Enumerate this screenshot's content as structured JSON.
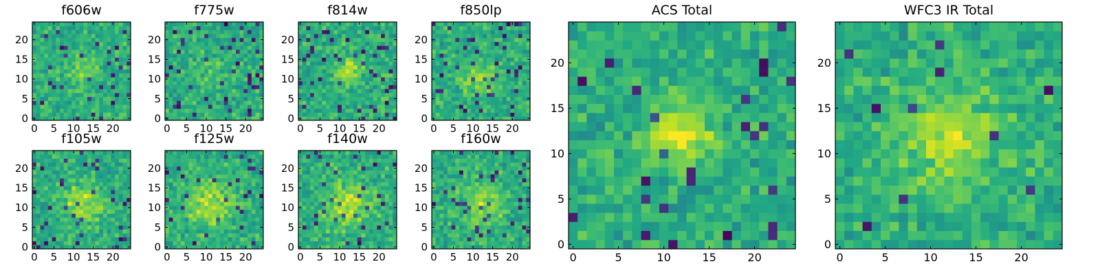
{
  "chart_data": [
    {
      "type": "heatmap",
      "title": "f606w",
      "xticks": [
        "0",
        "5",
        "10",
        "15",
        "20"
      ],
      "yticks": [
        "0",
        "5",
        "10",
        "15",
        "20"
      ],
      "grid_size": 25,
      "xlim": [
        -0.5,
        24.5
      ],
      "ylim": [
        -0.5,
        24.5
      ],
      "colormap": "viridis",
      "values": [],
      "seed": 1,
      "blob": {
        "x": 12,
        "y": 12,
        "strength": 0.15,
        "radius": 3
      },
      "dark_fraction": 0.05
    },
    {
      "type": "heatmap",
      "title": "f775w",
      "xticks": [
        "0",
        "5",
        "10",
        "15",
        "20"
      ],
      "yticks": [
        "0",
        "5",
        "10",
        "15",
        "20"
      ],
      "grid_size": 25,
      "xlim": [
        -0.5,
        24.5
      ],
      "ylim": [
        -0.5,
        24.5
      ],
      "colormap": "viridis",
      "values": [],
      "seed": 2,
      "blob": {
        "x": 12,
        "y": 12,
        "strength": 0.08,
        "radius": 3
      },
      "dark_fraction": 0.07
    },
    {
      "type": "heatmap",
      "title": "f814w",
      "xticks": [
        "0",
        "5",
        "10",
        "15",
        "20"
      ],
      "yticks": [
        "0",
        "5",
        "10",
        "15",
        "20"
      ],
      "grid_size": 25,
      "xlim": [
        -0.5,
        24.5
      ],
      "ylim": [
        -0.5,
        24.5
      ],
      "colormap": "viridis",
      "values": [],
      "seed": 3,
      "blob": {
        "x": 12,
        "y": 12,
        "strength": 0.22,
        "radius": 2.5
      },
      "dark_fraction": 0.06
    },
    {
      "type": "heatmap",
      "title": "f850lp",
      "xticks": [
        "0",
        "5",
        "10",
        "15",
        "20"
      ],
      "yticks": [
        "0",
        "5",
        "10",
        "15",
        "20"
      ],
      "grid_size": 25,
      "xlim": [
        -0.5,
        24.5
      ],
      "ylim": [
        -0.5,
        24.5
      ],
      "colormap": "viridis",
      "values": [],
      "seed": 4,
      "blob": {
        "x": 12,
        "y": 10,
        "strength": 0.2,
        "radius": 3
      },
      "dark_fraction": 0.06
    },
    {
      "type": "heatmap",
      "title": "f105w",
      "xticks": [
        "0",
        "5",
        "10",
        "15",
        "20"
      ],
      "yticks": [
        "0",
        "5",
        "10",
        "15",
        "20"
      ],
      "grid_size": 25,
      "xlim": [
        -0.5,
        24.5
      ],
      "ylim": [
        -0.5,
        24.5
      ],
      "colormap": "viridis",
      "values": [],
      "seed": 5,
      "blob": {
        "x": 12,
        "y": 11,
        "strength": 0.25,
        "radius": 3.5
      },
      "dark_fraction": 0.04
    },
    {
      "type": "heatmap",
      "title": "f125w",
      "xticks": [
        "0",
        "5",
        "10",
        "15",
        "20"
      ],
      "yticks": [
        "0",
        "5",
        "10",
        "15",
        "20"
      ],
      "grid_size": 25,
      "xlim": [
        -0.5,
        24.5
      ],
      "ylim": [
        -0.5,
        24.5
      ],
      "colormap": "viridis",
      "values": [],
      "seed": 6,
      "blob": {
        "x": 11,
        "y": 11,
        "strength": 0.25,
        "radius": 4
      },
      "dark_fraction": 0.04
    },
    {
      "type": "heatmap",
      "title": "f140w",
      "xticks": [
        "0",
        "5",
        "10",
        "15",
        "20"
      ],
      "yticks": [
        "0",
        "5",
        "10",
        "15",
        "20"
      ],
      "grid_size": 25,
      "xlim": [
        -0.5,
        24.5
      ],
      "ylim": [
        -0.5,
        24.5
      ],
      "colormap": "viridis",
      "values": [],
      "seed": 7,
      "blob": {
        "x": 12,
        "y": 11,
        "strength": 0.25,
        "radius": 4
      },
      "dark_fraction": 0.05
    },
    {
      "type": "heatmap",
      "title": "f160w",
      "xticks": [
        "0",
        "5",
        "10",
        "15",
        "20"
      ],
      "yticks": [
        "0",
        "5",
        "10",
        "15",
        "20"
      ],
      "grid_size": 25,
      "xlim": [
        -0.5,
        24.5
      ],
      "ylim": [
        -0.5,
        24.5
      ],
      "colormap": "viridis",
      "values": [],
      "seed": 8,
      "blob": {
        "x": 12,
        "y": 11,
        "strength": 0.25,
        "radius": 3.5
      },
      "dark_fraction": 0.07
    },
    {
      "type": "heatmap",
      "title": "ACS Total",
      "xticks": [
        "0",
        "5",
        "10",
        "15",
        "20"
      ],
      "yticks": [
        "0",
        "5",
        "10",
        "15",
        "20"
      ],
      "grid_size": 25,
      "xlim": [
        -0.5,
        24.5
      ],
      "ylim": [
        -0.5,
        24.5
      ],
      "colormap": "viridis",
      "values": [],
      "seed": 9,
      "blob": {
        "x": 12,
        "y": 12,
        "strength": 0.3,
        "radius": 2.5
      },
      "dark_fraction": 0.03
    },
    {
      "type": "heatmap",
      "title": "WFC3 IR Total",
      "xticks": [
        "0",
        "5",
        "10",
        "15",
        "20"
      ],
      "yticks": [
        "0",
        "5",
        "10",
        "15",
        "20"
      ],
      "grid_size": 25,
      "xlim": [
        -0.5,
        24.5
      ],
      "ylim": [
        -0.5,
        24.5
      ],
      "colormap": "viridis",
      "values": [],
      "seed": 10,
      "blob": {
        "x": 12,
        "y": 12,
        "strength": 0.3,
        "radius": 3.5
      },
      "dark_fraction": 0.02
    }
  ],
  "colors": {
    "axis": "#000000",
    "background": "#ffffff"
  }
}
